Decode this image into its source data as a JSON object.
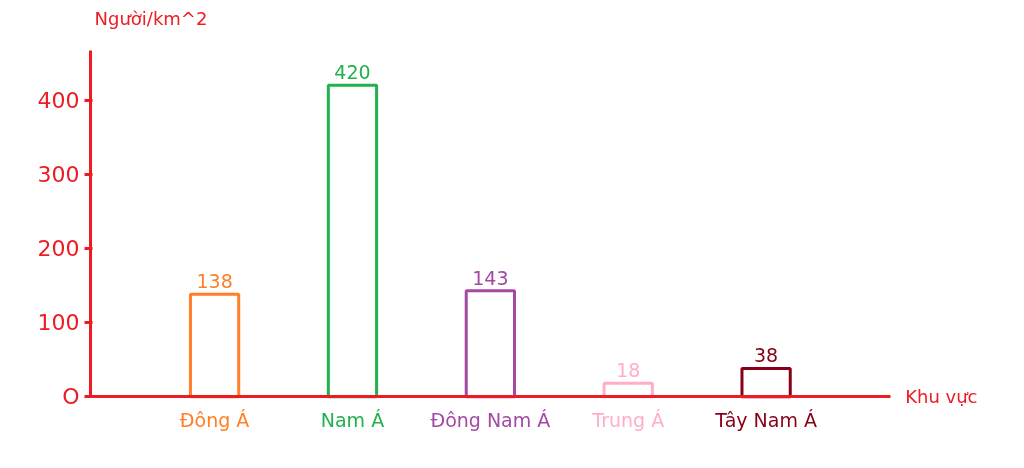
{
  "chart_data": {
    "type": "bar",
    "xlabel": "Khu vực",
    "ylabel": "Người/km^2",
    "categories": [
      "Đông Á",
      "Nam Á",
      "Đông Nam Á",
      "Trung Á",
      "Tây Nam Á"
    ],
    "values": [
      138,
      420,
      143,
      18,
      38
    ],
    "colors": [
      "#ff7f27",
      "#22b14c",
      "#a349a4",
      "#ffaec9",
      "#880015"
    ],
    "ylim": [
      0,
      467
    ],
    "yticks": [
      {
        "value": 0,
        "label": "O"
      },
      100,
      200,
      300,
      400
    ],
    "data_labels": true
  }
}
